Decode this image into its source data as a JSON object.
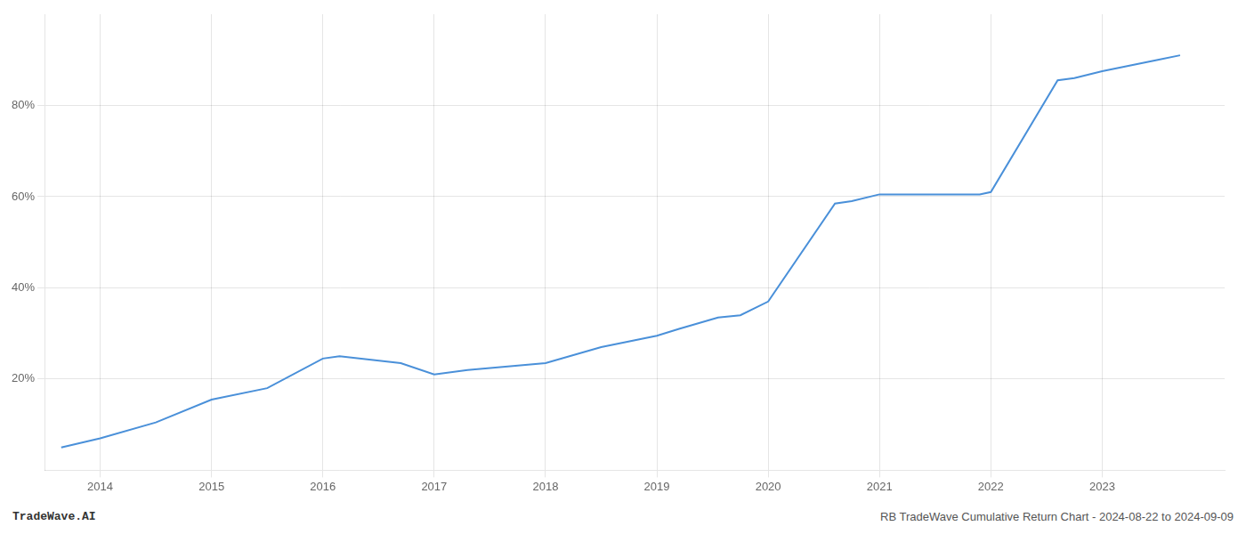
{
  "chart_data": {
    "type": "line",
    "x": [
      2013.65,
      2014.0,
      2014.5,
      2015.0,
      2015.5,
      2016.0,
      2016.15,
      2016.7,
      2017.0,
      2017.3,
      2018.0,
      2018.5,
      2019.0,
      2019.2,
      2019.55,
      2019.75,
      2020.0,
      2020.6,
      2020.75,
      2021.0,
      2021.1,
      2021.9,
      2022.0,
      2022.6,
      2022.75,
      2023.0,
      2023.5,
      2023.7
    ],
    "values": [
      5.0,
      7.0,
      10.5,
      15.5,
      18.0,
      24.5,
      25.0,
      23.5,
      21.0,
      22.0,
      23.5,
      27.0,
      29.5,
      31.0,
      33.5,
      34.0,
      37.0,
      58.5,
      59.0,
      60.5,
      60.5,
      60.5,
      61.0,
      85.5,
      86.0,
      87.5,
      90.0,
      91.0
    ],
    "color": "#4a90d9",
    "xlim": [
      2013.5,
      2024.1
    ],
    "xticks": [
      2014,
      2015,
      2016,
      2017,
      2018,
      2019,
      2020,
      2021,
      2022,
      2023
    ],
    "ylim": [
      0,
      100
    ],
    "yticks": [
      {
        "value": 20,
        "label": "20%"
      },
      {
        "value": 40,
        "label": "40%"
      },
      {
        "value": 60,
        "label": "60%"
      },
      {
        "value": 80,
        "label": "80%"
      }
    ],
    "grid": true,
    "annotations": [
      "TradeWave.AI",
      "RB TradeWave Cumulative Return Chart - 2024-08-22 to 2024-09-09"
    ]
  }
}
